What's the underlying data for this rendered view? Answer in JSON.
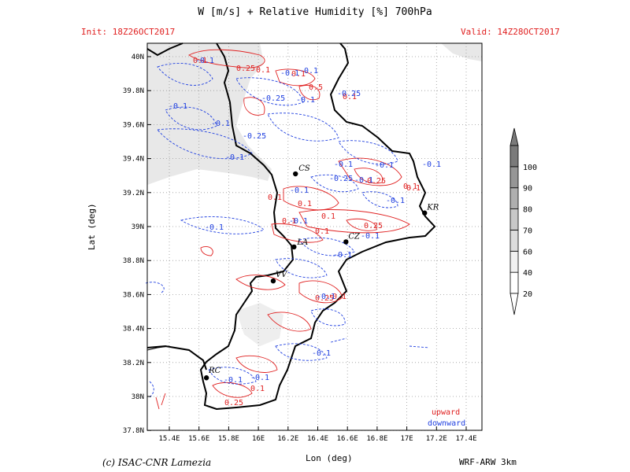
{
  "header": {
    "title": "W [m/s] + Relative Humidity [%] 700hPa",
    "init": "Init: 18Z26OCT2017",
    "valid": "Valid: 14Z28OCT2017"
  },
  "axes": {
    "xlabel": "Lon (deg)",
    "ylabel": "Lat (deg)",
    "xticks": [
      "15.4E",
      "15.6E",
      "15.8E",
      "16E",
      "16.2E",
      "16.4E",
      "16.6E",
      "16.8E",
      "17E",
      "17.2E",
      "17.4E"
    ],
    "yticks": [
      "40N",
      "39.8N",
      "39.6N",
      "39.4N",
      "39.2N",
      "39N",
      "38.8N",
      "38.6N",
      "38.4N",
      "38.2N",
      "38N",
      "37.8N"
    ]
  },
  "cities": [
    {
      "code": "CS"
    },
    {
      "code": "KR"
    },
    {
      "code": "CZ"
    },
    {
      "code": "LA"
    },
    {
      "code": "VV"
    },
    {
      "code": "RC"
    }
  ],
  "contour_labels": {
    "red": [
      "0.1",
      "0.1",
      "0.5",
      "0.1",
      "0.25",
      "0.1",
      "0.1",
      "0.1",
      "0.25",
      "0.1",
      "0.1",
      "0.25",
      "0.1",
      "0.25",
      "0.1",
      "0.1",
      "0.1",
      "0.25",
      "0.1"
    ],
    "blue": [
      "-0.1",
      "-0.1",
      "-0.1",
      "-0.1",
      "-0.25",
      "-0.1",
      "-0.1",
      "-0.25",
      "-0.1",
      "-0.1",
      "-0.1",
      "-0.1",
      "-0.25",
      "-0.1",
      "-0.1",
      "-0.1",
      "-0.1",
      "-0.1",
      "-0.1",
      "-0.1",
      "-0.25",
      "-0.1",
      "-0.1",
      "-0.1",
      "-0.1"
    ]
  },
  "colorbar": {
    "levels": [
      "20",
      "40",
      "60",
      "70",
      "80",
      "90",
      "100"
    ]
  },
  "legend": {
    "upward": "upward",
    "downward": "downward",
    "colors": {
      "upward": "#e02020",
      "downward": "#2040e0"
    }
  },
  "footer": {
    "credit": "(c) ISAC-CNR Lamezia",
    "model": "WRF-ARW 3km"
  }
}
